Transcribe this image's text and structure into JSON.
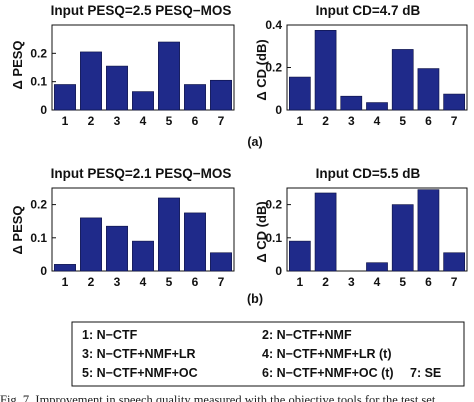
{
  "colors": {
    "bar": "#1f2a8a",
    "bar_edge": "#0a0f40"
  },
  "chart_data": [
    {
      "type": "bar",
      "title": "Input PESQ=2.5 PESQ−MOS",
      "ylabel": "Δ PESQ",
      "categories": [
        "1",
        "2",
        "3",
        "4",
        "5",
        "6",
        "7"
      ],
      "values": [
        0.09,
        0.205,
        0.155,
        0.065,
        0.24,
        0.09,
        0.105
      ],
      "ylim": [
        0,
        0.3
      ],
      "yticks": [
        "0",
        "0.1",
        "0.2"
      ],
      "ytick_values": [
        0,
        0.1,
        0.2
      ]
    },
    {
      "type": "bar",
      "title": "Input CD=4.7 dB",
      "ylabel": "Δ CD (dB)",
      "categories": [
        "1",
        "2",
        "3",
        "4",
        "5",
        "6",
        "7"
      ],
      "values": [
        0.155,
        0.375,
        0.065,
        0.035,
        0.285,
        0.195,
        0.075
      ],
      "ylim": [
        0,
        0.4
      ],
      "yticks": [
        "0",
        "0.2",
        "0.4"
      ],
      "ytick_values": [
        0,
        0.2,
        0.4
      ]
    },
    {
      "type": "bar",
      "title": "Input PESQ=2.1 PESQ−MOS",
      "ylabel": "Δ PESQ",
      "categories": [
        "1",
        "2",
        "3",
        "4",
        "5",
        "6",
        "7"
      ],
      "values": [
        0.02,
        0.16,
        0.135,
        0.09,
        0.22,
        0.175,
        0.055
      ],
      "ylim": [
        0,
        0.25
      ],
      "yticks": [
        "0",
        "0.1",
        "0.2"
      ],
      "ytick_values": [
        0,
        0.1,
        0.2
      ]
    },
    {
      "type": "bar",
      "title": "Input CD=5.5 dB",
      "ylabel": "Δ CD (dB)",
      "categories": [
        "1",
        "2",
        "3",
        "4",
        "5",
        "6",
        "7"
      ],
      "values": [
        0.09,
        0.235,
        0.0,
        0.025,
        0.2,
        0.245,
        0.055
      ],
      "ylim": [
        0,
        0.25
      ],
      "yticks": [
        "0",
        "0.1",
        "0.2"
      ],
      "ytick_values": [
        0,
        0.1,
        0.2
      ]
    }
  ],
  "captions": {
    "a": "(a)",
    "b": "(b)"
  },
  "legend": [
    [
      "1: N−CTF",
      "2: N−CTF+NMF"
    ],
    [
      "3: N−CTF+NMF+LR",
      "4: N−CTF+NMF+LR (t)"
    ],
    [
      "5: N−CTF+NMF+OC",
      "6: N−CTF+NMF+OC (t)",
      "7: SE"
    ]
  ],
  "footer_text": "Fig. 7. Improvement in speech quality measured with the objective tools for the test set"
}
